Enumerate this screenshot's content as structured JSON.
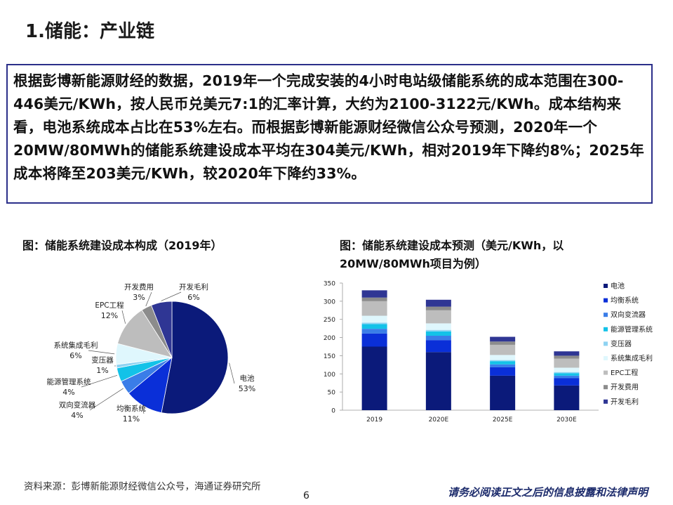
{
  "page": {
    "title": "1.储能：产业链",
    "summary": "根据彭博新能源财经的数据，2019年一个完成安装的4小时电站级储能系统的成本范围在300-446美元/KWh，按人民币兑美元7:1的汇率计算，大约为2100-3122元/KWh。成本结构来看，电池系统成本占比在53%左右。而根据彭博新能源财经微信公众号预测，2020年一个20MW/80MWh的储能系统建设成本平均在304美元/KWh，相对2019年下降约8%；2025年成本将降至203美元/KWh，较2020年下降约33%。",
    "source": "资料来源：彭博新能源财经微信公众号，海通证券研究所",
    "page_number": "6",
    "disclaimer": "请务必阅读正文之后的信息披露和法律声明"
  },
  "chart_data": [
    {
      "type": "pie",
      "title": "图：储能系统建设成本构成（2019年）",
      "slices": [
        {
          "name": "电池",
          "value": 53,
          "label": "53%",
          "color": "#0b1a7a"
        },
        {
          "name": "均衡系统",
          "value": 11,
          "label": "11%",
          "color": "#0a2fd8"
        },
        {
          "name": "双向变流器",
          "value": 4,
          "label": "4%",
          "color": "#3a7de8"
        },
        {
          "name": "能源管理系统",
          "value": 4,
          "label": "4%",
          "color": "#13c2e8"
        },
        {
          "name": "变压器",
          "value": 1,
          "label": "1%",
          "color": "#8fd3f2"
        },
        {
          "name": "系统集成毛利",
          "value": 6,
          "label": "6%",
          "color": "#dff7fd"
        },
        {
          "name": "EPC工程",
          "value": 12,
          "label": "12%",
          "color": "#bdbdbd"
        },
        {
          "name": "开发费用",
          "value": 3,
          "label": "3%",
          "color": "#8c8c8c"
        },
        {
          "name": "开发毛利",
          "value": 6,
          "label": "6%",
          "color": "#2f3694"
        }
      ]
    },
    {
      "type": "bar",
      "stacked": true,
      "title": "图：储能系统建设成本预测（美元/KWh，以20MW/80MWh项目为例）",
      "categories": [
        "2019",
        "2020E",
        "2025E",
        "2030E"
      ],
      "ylim": [
        0,
        350
      ],
      "yticks": [
        0,
        50,
        100,
        150,
        200,
        250,
        300,
        350
      ],
      "legend_position": "right",
      "series": [
        {
          "name": "电池",
          "color": "#0b1a7a",
          "values": [
            175,
            160,
            95,
            68
          ]
        },
        {
          "name": "均衡系统",
          "color": "#0a2fd8",
          "values": [
            36,
            33,
            23,
            20
          ]
        },
        {
          "name": "双向变流器",
          "color": "#3a7de8",
          "values": [
            13,
            12,
            8,
            7
          ]
        },
        {
          "name": "能源管理系统",
          "color": "#13c2e8",
          "values": [
            13,
            12,
            9,
            7
          ]
        },
        {
          "name": "变压器",
          "color": "#8fd3f2",
          "values": [
            4,
            4,
            3,
            3
          ]
        },
        {
          "name": "系统集成毛利",
          "color": "#dff7fd",
          "values": [
            19,
            18,
            14,
            12
          ]
        },
        {
          "name": "EPC工程",
          "color": "#bdbdbd",
          "values": [
            40,
            36,
            28,
            25
          ]
        },
        {
          "name": "开发费用",
          "color": "#8c8c8c",
          "values": [
            10,
            10,
            9,
            8
          ]
        },
        {
          "name": "开发毛利",
          "color": "#2f3694",
          "values": [
            20,
            19,
            13,
            12
          ]
        }
      ]
    }
  ]
}
